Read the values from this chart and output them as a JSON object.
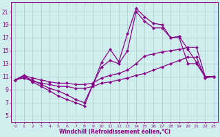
{
  "xlabel": "Windchill (Refroidissement éolien,°C)",
  "x_hours": [
    0,
    1,
    2,
    3,
    4,
    5,
    6,
    7,
    8,
    9,
    10,
    11,
    12,
    13,
    14,
    15,
    16,
    17,
    18,
    19,
    20,
    21,
    22,
    23
  ],
  "line1_y": [
    10.5,
    11.2,
    10.2,
    9.5,
    8.8,
    8.0,
    7.5,
    7.0,
    6.5,
    9.8,
    13.2,
    15.2,
    13.3,
    17.6,
    21.5,
    20.2,
    19.2,
    19.0,
    17.0,
    17.2,
    15.2,
    13.2,
    11.0,
    11.0
  ],
  "line2_y": [
    10.5,
    11.0,
    10.5,
    9.8,
    9.2,
    8.8,
    8.2,
    7.5,
    7.0,
    9.8,
    12.5,
    13.5,
    13.0,
    15.0,
    21.0,
    19.5,
    18.5,
    18.5,
    17.0,
    17.0,
    13.0,
    13.0,
    11.0,
    11.0
  ],
  "line3_y": [
    10.5,
    11.2,
    10.8,
    10.5,
    10.2,
    10.0,
    10.0,
    9.8,
    9.8,
    10.0,
    10.8,
    11.2,
    11.5,
    12.0,
    13.0,
    14.2,
    14.5,
    14.8,
    15.0,
    15.2,
    15.5,
    15.5,
    11.0,
    11.0
  ],
  "line4_y": [
    10.5,
    10.8,
    10.3,
    10.0,
    9.8,
    9.5,
    9.5,
    9.2,
    9.2,
    9.5,
    10.0,
    10.2,
    10.5,
    10.8,
    11.2,
    11.5,
    12.0,
    12.5,
    13.0,
    13.5,
    14.0,
    14.0,
    10.8,
    11.0
  ],
  "line_color": "#880088",
  "bg_color": "#d0eeee",
  "grid_color": "#a8cccc",
  "ylim": [
    4.0,
    22.5
  ],
  "xlim": [
    -0.5,
    23.5
  ],
  "yticks": [
    5,
    7,
    9,
    11,
    13,
    15,
    17,
    19,
    21
  ],
  "xticks": [
    0,
    1,
    2,
    3,
    4,
    5,
    6,
    7,
    8,
    9,
    10,
    11,
    12,
    13,
    14,
    15,
    16,
    17,
    18,
    19,
    20,
    21,
    22,
    23
  ],
  "ytick_fontsize": 5.5,
  "xtick_fontsize": 4.5,
  "xlabel_fontsize": 5.5,
  "marker_size": 2.5,
  "linewidth": 0.9
}
